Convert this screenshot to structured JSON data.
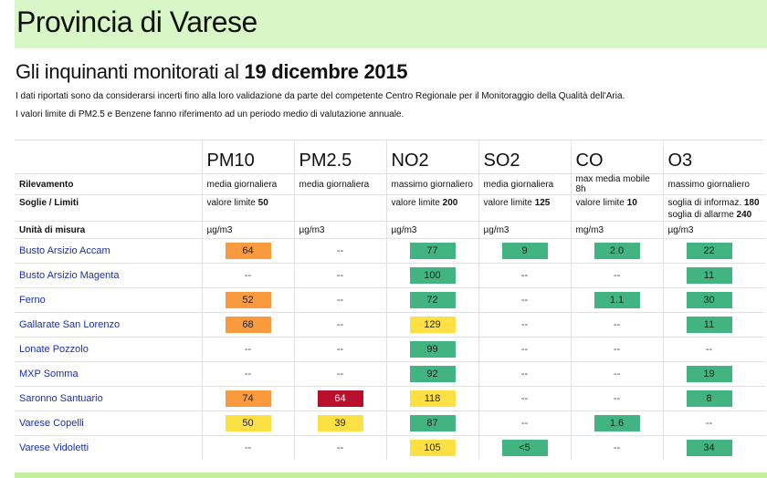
{
  "title": "Provincia di Varese",
  "subtitle_prefix": "Gli inquinanti monitorati al",
  "subtitle_date": "19 dicembre 2015",
  "notes": [
    "I dati riportati sono da considerarsi incerti fino alla loro validazione da parte del competente Centro Regionale per il Monitoraggio della Qualità dell'Aria.",
    "I valori limite di PM2.5 e Benzene fanno riferimento ad un periodo medio di valutazione annuale."
  ],
  "table": {
    "row_labels": {
      "rilevamento": "Rilevamento",
      "soglie": "Soglie / Limiti",
      "unita": "Unità di misura"
    },
    "pollutants": [
      {
        "name": "PM10",
        "rilevamento": "media giornaliera",
        "soglia_text": "valore limite",
        "soglia_value": "50",
        "soglia2_text": "",
        "soglia2_value": "",
        "unit": "µg/m3"
      },
      {
        "name": "PM2.5",
        "rilevamento": "media giornaliera",
        "soglia_text": "",
        "soglia_value": "",
        "soglia2_text": "",
        "soglia2_value": "",
        "unit": "µg/m3"
      },
      {
        "name": "NO2",
        "rilevamento": "massimo giornaliero",
        "soglia_text": "valore limite",
        "soglia_value": "200",
        "soglia2_text": "",
        "soglia2_value": "",
        "unit": "µg/m3"
      },
      {
        "name": "SO2",
        "rilevamento": "media giornaliera",
        "soglia_text": "valore limite",
        "soglia_value": "125",
        "soglia2_text": "",
        "soglia2_value": "",
        "unit": "µg/m3"
      },
      {
        "name": "CO",
        "rilevamento": "max media mobile 8h",
        "soglia_text": "valore limite",
        "soglia_value": "10",
        "soglia2_text": "",
        "soglia2_value": "",
        "unit": "mg/m3"
      },
      {
        "name": "O3",
        "rilevamento": "massimo giornaliero",
        "soglia_text": "soglia di informaz.",
        "soglia_value": "180",
        "soglia2_text": "soglia di allarme",
        "soglia2_value": "240",
        "unit": "µg/m3"
      }
    ],
    "stations": [
      {
        "name": "Busto Arsizio Accam",
        "values": [
          "64",
          "--",
          "77",
          "9",
          "2.0",
          "22"
        ],
        "levels": [
          "orange",
          "none",
          "green",
          "green",
          "green",
          "green"
        ]
      },
      {
        "name": "Busto Arsizio Magenta",
        "values": [
          "--",
          "--",
          "100",
          "--",
          "--",
          "11"
        ],
        "levels": [
          "none",
          "none",
          "green",
          "none",
          "none",
          "green"
        ]
      },
      {
        "name": "Ferno",
        "values": [
          "52",
          "--",
          "72",
          "--",
          "1.1",
          "30"
        ],
        "levels": [
          "orange",
          "none",
          "green",
          "none",
          "green",
          "green"
        ]
      },
      {
        "name": "Gallarate San Lorenzo",
        "values": [
          "68",
          "--",
          "129",
          "--",
          "--",
          "11"
        ],
        "levels": [
          "orange",
          "none",
          "yellow",
          "none",
          "none",
          "green"
        ]
      },
      {
        "name": "Lonate Pozzolo",
        "values": [
          "--",
          "--",
          "99",
          "--",
          "--",
          "--"
        ],
        "levels": [
          "none",
          "none",
          "green",
          "none",
          "none",
          "none"
        ]
      },
      {
        "name": "MXP Somma",
        "values": [
          "--",
          "--",
          "92",
          "--",
          "--",
          "19"
        ],
        "levels": [
          "none",
          "none",
          "green",
          "none",
          "none",
          "green"
        ]
      },
      {
        "name": "Saronno Santuario",
        "values": [
          "74",
          "64",
          "118",
          "--",
          "--",
          "8"
        ],
        "levels": [
          "orange",
          "red",
          "yellow",
          "none",
          "none",
          "green"
        ]
      },
      {
        "name": "Varese Copelli",
        "values": [
          "50",
          "39",
          "87",
          "--",
          "1.6",
          "--"
        ],
        "levels": [
          "yellow",
          "yellow",
          "green",
          "none",
          "green",
          "none"
        ]
      },
      {
        "name": "Varese Vidoletti",
        "values": [
          "--",
          "--",
          "105",
          "<5",
          "--",
          "34"
        ],
        "levels": [
          "none",
          "none",
          "yellow",
          "green",
          "none",
          "green"
        ]
      }
    ]
  },
  "colors": {
    "green": "#42b482",
    "yellow": "#fde144",
    "orange": "#f99a3e",
    "red": "#b80f2c",
    "band": "#d9f7c6"
  }
}
